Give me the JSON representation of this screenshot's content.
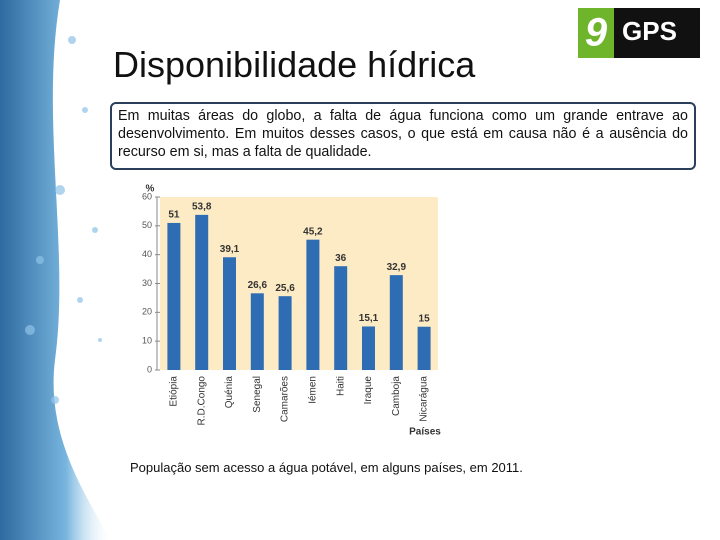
{
  "slide": {
    "title": "Disponibilidade hídrica",
    "text": "Em muitas áreas do globo, a falta de água funciona como um grande entrave ao desenvolvimento. Em muitos desses casos, o que está em causa não é a ausência do recurso em si, mas a falta de qualidade.",
    "caption": "População sem acesso a água potável, em alguns países, em 2011.",
    "logo_number": "9",
    "logo_text": "GPS"
  },
  "chart_data": {
    "type": "bar",
    "y_label": "%",
    "x_label": "Países",
    "categories": [
      "Etiópia",
      "R.D.Congo",
      "Quénia",
      "Senegal",
      "Camarões",
      "Iémen",
      "Haiti",
      "Iraque",
      "Camboja",
      "Nicarágua"
    ],
    "values": [
      51,
      53.8,
      39.1,
      26.6,
      25.6,
      45.2,
      36,
      15.1,
      32.9,
      15
    ],
    "value_labels": [
      "51",
      "53,8",
      "39,1",
      "26,6",
      "25,6",
      "45,2",
      "36",
      "15,1",
      "32,9",
      "15"
    ],
    "color": "#2e6db4",
    "ylim": [
      0,
      60
    ],
    "yticks": [
      0,
      10,
      20,
      30,
      40,
      50,
      60
    ]
  }
}
